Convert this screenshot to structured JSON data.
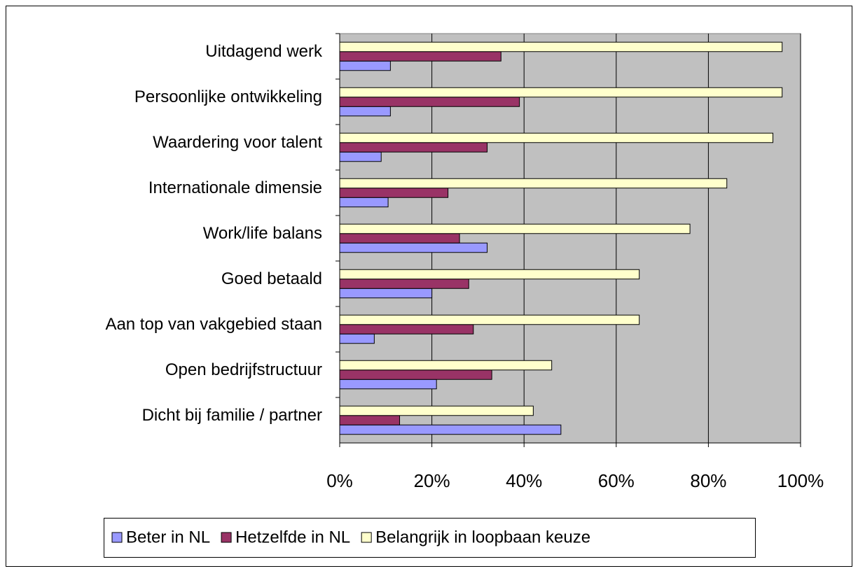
{
  "chart_data": {
    "type": "barh",
    "categories": [
      "Uitdagend werk",
      "Persoonlijke ontwikkeling",
      "Waardering voor talent",
      "Internationale dimensie",
      "Work/life balans",
      "Goed betaald",
      "Aan top van vakgebied staan",
      "Open bedrijfstructuur",
      "Dicht bij familie / partner"
    ],
    "series": [
      {
        "name": "Beter in NL",
        "color": "#9999ff",
        "values": [
          11,
          11,
          9,
          10.5,
          32,
          20,
          7.5,
          21,
          48
        ]
      },
      {
        "name": "Hetzelfde in NL",
        "color": "#993366",
        "values": [
          35,
          39,
          32,
          23.5,
          26,
          28,
          29,
          33,
          13
        ]
      },
      {
        "name": "Belangrijk in loopbaan keuze",
        "color": "#ffffcc",
        "values": [
          96,
          96,
          94,
          84,
          76,
          65,
          65,
          46,
          42
        ]
      }
    ],
    "xlim": [
      0,
      100
    ],
    "xticks": [
      {
        "value": 0,
        "label": "0%"
      },
      {
        "value": 20,
        "label": "20%"
      },
      {
        "value": 40,
        "label": "40%"
      },
      {
        "value": 60,
        "label": "60%"
      },
      {
        "value": 80,
        "label": "80%"
      },
      {
        "value": 100,
        "label": "100%"
      }
    ],
    "grid": true,
    "legend": "bottom",
    "plot_background": "#c0c0c0"
  }
}
